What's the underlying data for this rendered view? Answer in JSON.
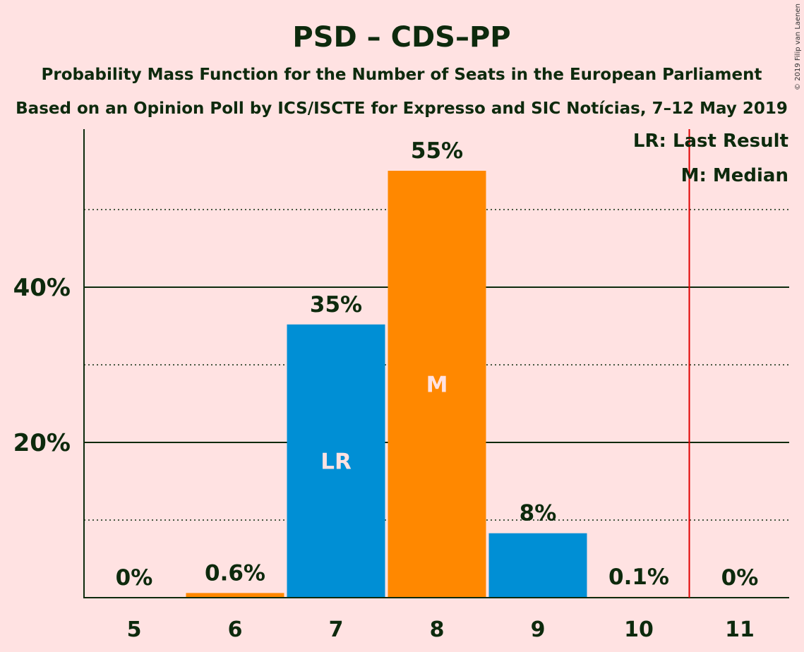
{
  "colors": {
    "background": "#FFE2E2",
    "text": "#0D2A0D",
    "bar_orange": "#FF8800",
    "bar_blue": "#008FD5",
    "last_result_line": "#E00000"
  },
  "chart_data": {
    "type": "bar",
    "title": "PSD – CDS–PP",
    "subtitle_line1": "Probability Mass Function for the Number of Seats in the European Parliament",
    "subtitle_line2": "Based on an Opinion Poll by ICS/ISCTE for Expresso and SIC Notícias, 7–12 May 2019",
    "xlabel": "",
    "ylabel": "",
    "categories": [
      "5",
      "6",
      "7",
      "8",
      "9",
      "10",
      "11"
    ],
    "values": [
      0,
      0.6,
      35.2,
      55.0,
      8.3,
      0.1,
      0
    ],
    "value_labels": [
      "0%",
      "0.6%",
      "35%",
      "55%",
      "8%",
      "0.1%",
      "0%"
    ],
    "bar_colors": [
      "#FF8800",
      "#FF8800",
      "#008FD5",
      "#FF8800",
      "#008FD5",
      "#FF8800",
      "#008FD5"
    ],
    "in_bar_labels": [
      "",
      "",
      "LR",
      "M",
      "",
      "",
      ""
    ],
    "ylim": [
      0,
      60
    ],
    "y_major_ticks": [
      20,
      40
    ],
    "y_tick_labels": [
      "20%",
      "40%"
    ],
    "y_minor_gridlines": [
      10,
      30,
      50
    ],
    "last_result_line_after_category": "10",
    "legend": {
      "placement": "top-right",
      "entries": [
        "LR: Last Result",
        "M: Median"
      ]
    }
  },
  "copyright": "© 2019 Filip van Laenen"
}
